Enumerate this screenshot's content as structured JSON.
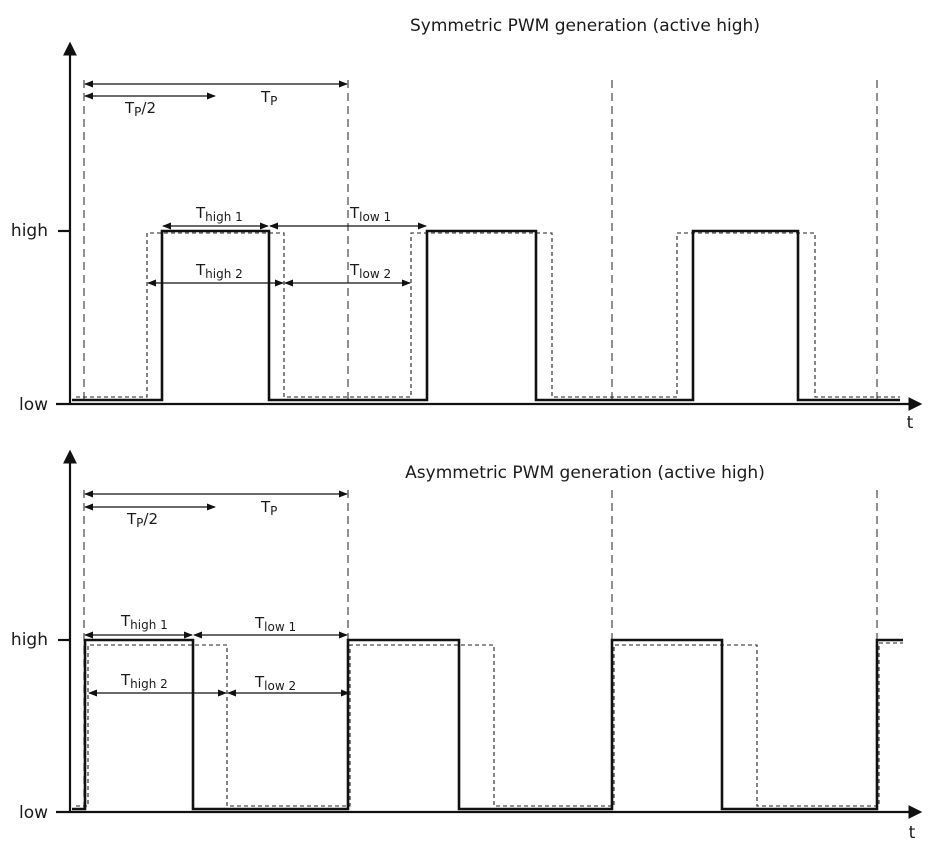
{
  "symmetric": {
    "title": "Symmetric PWM generation (active high)",
    "y_high": "high",
    "y_low": "low",
    "x_axis": "t",
    "tp_half_main": "T",
    "tp_half_sub": "P",
    "tp_half_tail": "/2",
    "tp_main": "T",
    "tp_sub": "P",
    "thigh1_main": "T",
    "thigh1_sub": "high 1",
    "tlow1_main": "T",
    "tlow1_sub": "low 1",
    "thigh2_main": "T",
    "thigh2_sub": "high 2",
    "tlow2_main": "T",
    "tlow2_sub": "low 2"
  },
  "asymmetric": {
    "title": "Asymmetric PWM generation (active high)",
    "y_high": "high",
    "y_low": "low",
    "x_axis": "t",
    "tp_half_main": "T",
    "tp_half_sub": "P",
    "tp_half_tail": "/2",
    "tp_main": "T",
    "tp_sub": "P",
    "thigh1_main": "T",
    "thigh1_sub": "high 1",
    "tlow1_main": "T",
    "tlow1_sub": "low 1",
    "thigh2_main": "T",
    "thigh2_sub": "high 2",
    "tlow2_main": "T",
    "tlow2_sub": "low 2"
  }
}
